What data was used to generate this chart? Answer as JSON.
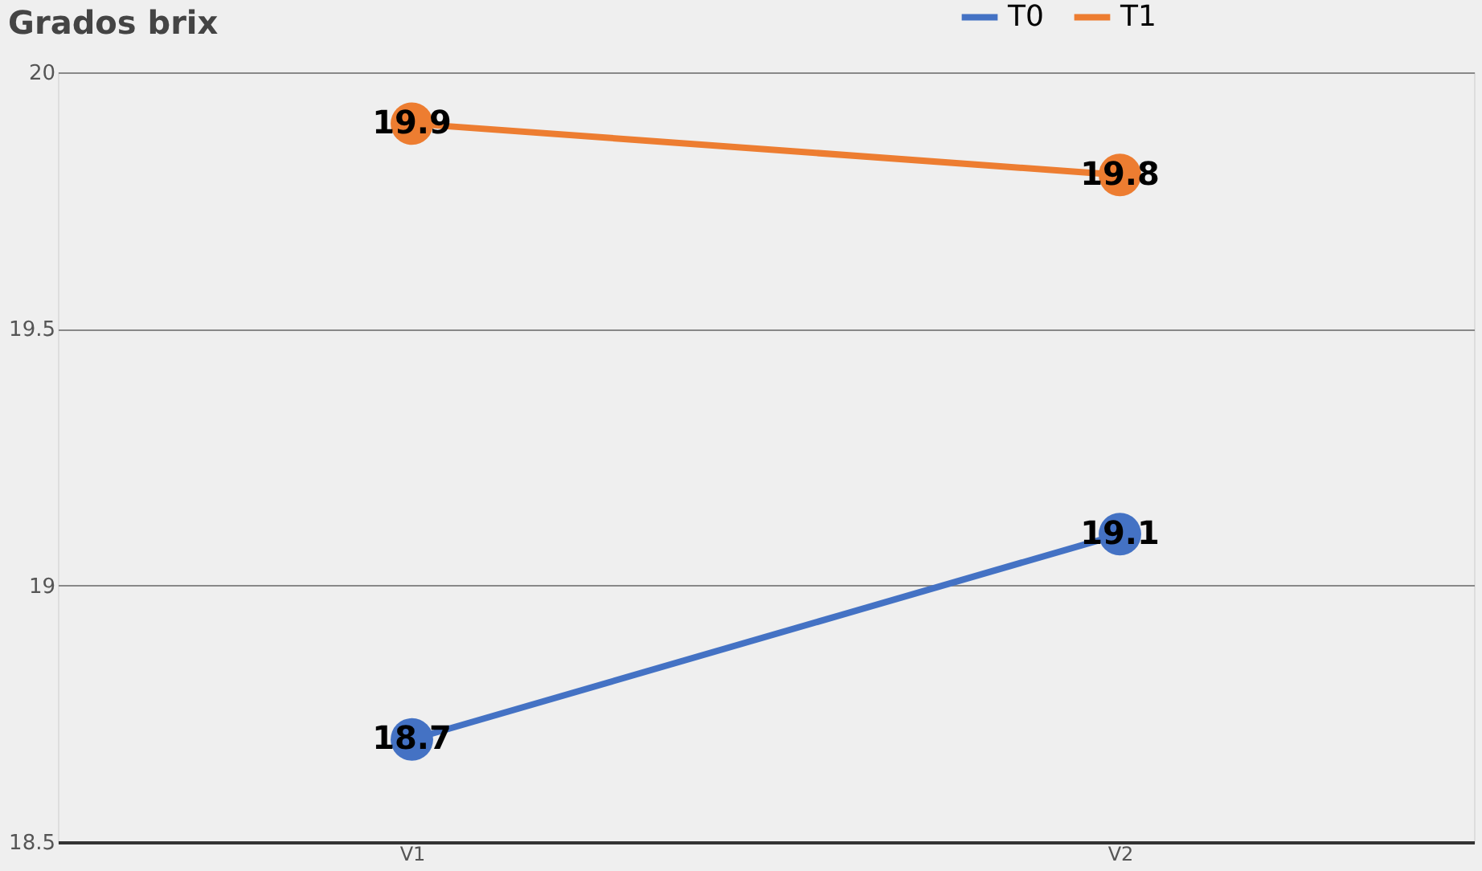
{
  "chart_data": {
    "type": "line",
    "title": "Grados brix",
    "categories": [
      "V1",
      "V2"
    ],
    "series": [
      {
        "name": "T0",
        "color": "#4472c4",
        "values": [
          18.7,
          19.1
        ]
      },
      {
        "name": "T1",
        "color": "#ed7d31",
        "values": [
          19.9,
          19.8
        ]
      }
    ],
    "ylim": [
      18.5,
      20
    ],
    "yticks": [
      18.5,
      19,
      19.5,
      20
    ],
    "grid": "y",
    "legend": "top right",
    "marker": "circle",
    "line_style": "solid",
    "data_labels": true
  }
}
